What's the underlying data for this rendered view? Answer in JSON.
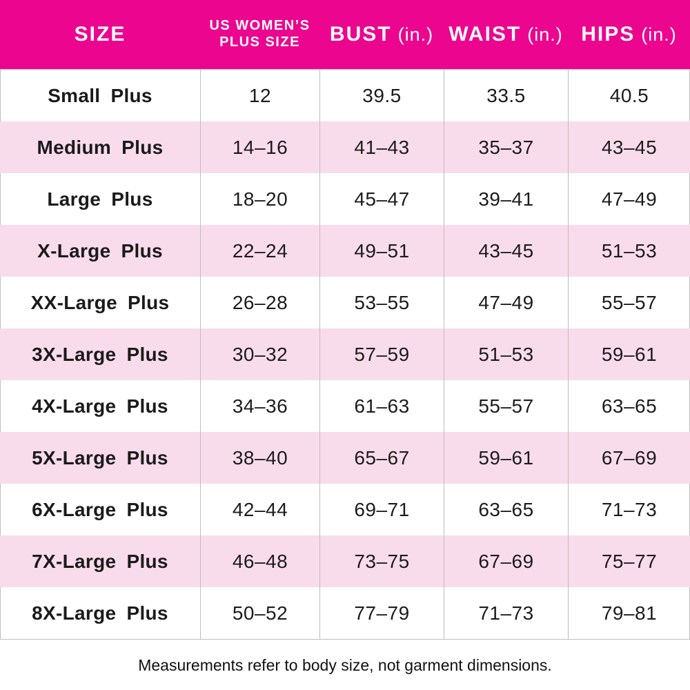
{
  "theme": {
    "header_bg": "#EC058F",
    "header_text": "#FFFFFF",
    "row_bg": "#FFFFFF",
    "row_alt_bg": "#F9DCEB",
    "border_color": "#BDBDBD",
    "body_text": "#1B1B1B"
  },
  "chart_data": {
    "type": "table",
    "title": "",
    "columns": [
      {
        "title": "SIZE",
        "unit": ""
      },
      {
        "title": "US WOMEN'S PLUS SIZE",
        "unit": "",
        "line1": "US WOMEN’S",
        "line2": "PLUS SIZE"
      },
      {
        "title": "BUST",
        "unit": "(in.)"
      },
      {
        "title": "WAIST",
        "unit": "(in.)"
      },
      {
        "title": "HIPS",
        "unit": "(in.)"
      }
    ],
    "rows": [
      [
        "Small Plus",
        "12",
        "39.5",
        "33.5",
        "40.5"
      ],
      [
        "Medium Plus",
        "14–16",
        "41–43",
        "35–37",
        "43–45"
      ],
      [
        "Large Plus",
        "18–20",
        "45–47",
        "39–41",
        "47–49"
      ],
      [
        "X-Large Plus",
        "22–24",
        "49–51",
        "43–45",
        "51–53"
      ],
      [
        "XX-Large Plus",
        "26–28",
        "53–55",
        "47–49",
        "55–57"
      ],
      [
        "3X-Large Plus",
        "30–32",
        "57–59",
        "51–53",
        "59–61"
      ],
      [
        "4X-Large Plus",
        "34–36",
        "61–63",
        "55–57",
        "63–65"
      ],
      [
        "5X-Large Plus",
        "38–40",
        "65–67",
        "59–61",
        "67–69"
      ],
      [
        "6X-Large Plus",
        "42–44",
        "69–71",
        "63–65",
        "71–73"
      ],
      [
        "7X-Large Plus",
        "46–48",
        "73–75",
        "67–69",
        "75–77"
      ],
      [
        "8X-Large Plus",
        "50–52",
        "77–79",
        "71–73",
        "79–81"
      ]
    ],
    "footnote": "Measurements refer to body size, not garment dimensions."
  }
}
